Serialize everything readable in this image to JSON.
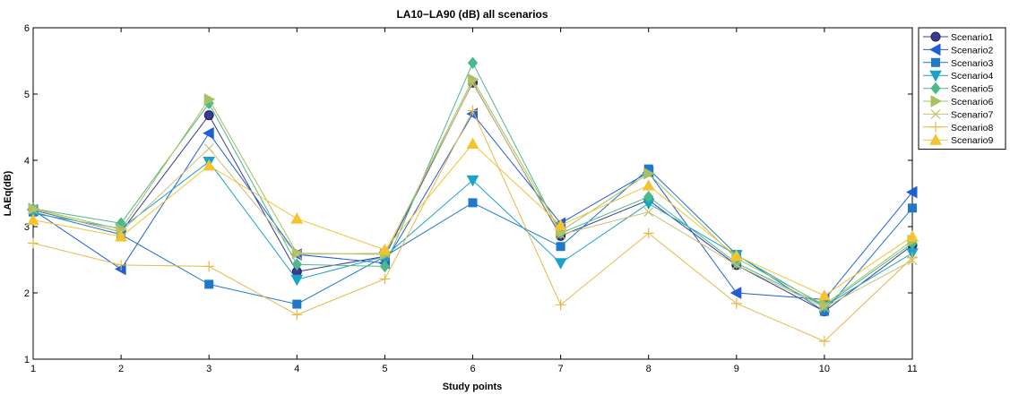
{
  "chart_data": {
    "type": "line",
    "title": "LA10−LA90 (dB) all scenarios",
    "xlabel": "Study points",
    "ylabel": "LAEq(dB)",
    "x": [
      1,
      2,
      3,
      4,
      5,
      6,
      7,
      8,
      9,
      10,
      11
    ],
    "xticks": [
      "1",
      "2",
      "3",
      "4",
      "5",
      "6",
      "7",
      "8",
      "9",
      "10",
      "11"
    ],
    "xlim": [
      1,
      11
    ],
    "ylim": [
      1,
      6
    ],
    "yticks": [
      "1",
      "2",
      "3",
      "4",
      "5",
      "6"
    ],
    "grid": false,
    "legend_position": "top-right outside",
    "series": [
      {
        "name": "Scenario1",
        "color": "#3b3b8c",
        "marker": "circle",
        "values": [
          3.25,
          2.92,
          4.68,
          2.32,
          2.55,
          5.17,
          2.86,
          3.4,
          2.42,
          1.72,
          2.72
        ]
      },
      {
        "name": "Scenario2",
        "color": "#1f5fd6",
        "marker": "triangle-left",
        "values": [
          3.25,
          2.36,
          4.41,
          2.58,
          2.45,
          4.7,
          3.05,
          3.82,
          2.0,
          1.9,
          3.52
        ]
      },
      {
        "name": "Scenario3",
        "color": "#1f78c8",
        "marker": "square",
        "values": [
          3.22,
          2.88,
          2.13,
          1.83,
          2.55,
          3.36,
          2.7,
          3.87,
          2.58,
          1.72,
          3.28
        ]
      },
      {
        "name": "Scenario4",
        "color": "#1aa3c8",
        "marker": "triangle-down",
        "values": [
          3.2,
          2.97,
          3.98,
          2.2,
          2.55,
          3.7,
          2.45,
          3.35,
          2.57,
          1.8,
          2.6
        ]
      },
      {
        "name": "Scenario5",
        "color": "#4cb98c",
        "marker": "diamond",
        "values": [
          3.27,
          3.05,
          4.86,
          2.43,
          2.4,
          5.47,
          2.9,
          3.45,
          2.45,
          1.8,
          2.75
        ]
      },
      {
        "name": "Scenario6",
        "color": "#a8c060",
        "marker": "triangle-right",
        "values": [
          3.27,
          2.96,
          4.92,
          2.6,
          2.58,
          5.22,
          2.93,
          3.8,
          2.52,
          1.82,
          2.79
        ]
      },
      {
        "name": "Scenario7",
        "color": "#c8c070",
        "marker": "x",
        "values": [
          3.26,
          2.92,
          4.18,
          2.58,
          2.6,
          5.16,
          2.88,
          3.22,
          2.42,
          1.78,
          2.49
        ]
      },
      {
        "name": "Scenario8",
        "color": "#e8b848",
        "marker": "plus",
        "values": [
          2.75,
          2.42,
          2.4,
          1.67,
          2.21,
          4.75,
          1.82,
          2.9,
          1.84,
          1.27,
          2.53
        ]
      },
      {
        "name": "Scenario9",
        "color": "#f4c430",
        "marker": "triangle-up",
        "values": [
          3.1,
          2.85,
          3.92,
          3.12,
          2.65,
          4.25,
          3.02,
          3.62,
          2.56,
          1.96,
          2.85
        ]
      }
    ]
  }
}
